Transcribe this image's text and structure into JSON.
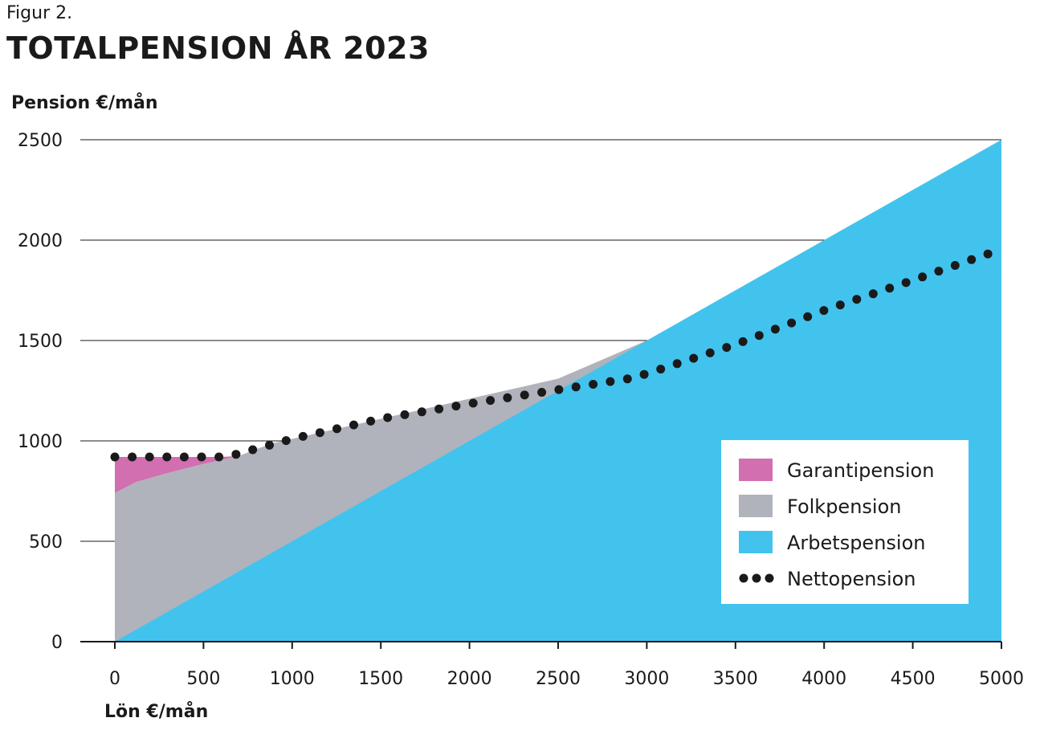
{
  "figure_label": "Figur 2.",
  "chart_data": {
    "type": "area",
    "title": "TOTALPENSION ÅR 2023",
    "ylabel": "Pension €/mån",
    "xlabel": "Lön €/mån",
    "xlim": [
      0,
      5000
    ],
    "ylim": [
      0,
      2500
    ],
    "x_ticks": [
      {
        "value": 0,
        "label": "0"
      },
      {
        "value": 500,
        "label": "500"
      },
      {
        "value": 1000,
        "label": "1000"
      },
      {
        "value": 1500,
        "label": "1500"
      },
      {
        "value": 2000,
        "label": "2000"
      },
      {
        "value": 2500,
        "label": "2500"
      },
      {
        "value": 3000,
        "label": "3000"
      },
      {
        "value": 3500,
        "label": "3500"
      },
      {
        "value": 4000,
        "label": "4000"
      },
      {
        "value": 4500,
        "label": "4500"
      },
      {
        "value": 5000,
        "label": "5000"
      }
    ],
    "y_ticks": [
      {
        "value": 0,
        "label": "0"
      },
      {
        "value": 500,
        "label": "500"
      },
      {
        "value": 1000,
        "label": "1000"
      },
      {
        "value": 1500,
        "label": "1500"
      },
      {
        "value": 2000,
        "label": "2000"
      },
      {
        "value": 2500,
        "label": "2500"
      }
    ],
    "grid": "horizontal",
    "legend_position": "bottom-right",
    "series": [
      {
        "name": "Arbetspension",
        "kind": "area",
        "color": "#42c3ee",
        "points": [
          [
            0,
            0
          ],
          [
            5000,
            2500
          ]
        ]
      },
      {
        "name": "Folkpension",
        "kind": "area",
        "color": "#b0b3bb",
        "points": [
          [
            0,
            740
          ],
          [
            120,
            795
          ],
          [
            300,
            840
          ],
          [
            500,
            885
          ],
          [
            600,
            905
          ],
          [
            700,
            925
          ],
          [
            800,
            960
          ],
          [
            900,
            990
          ],
          [
            1000,
            1010
          ],
          [
            1500,
            1110
          ],
          [
            2000,
            1210
          ],
          [
            2500,
            1310
          ],
          [
            3000,
            1500
          ]
        ]
      },
      {
        "name": "Garantipension",
        "kind": "area",
        "color": "#d16fb0",
        "points": [
          [
            0,
            920
          ],
          [
            600,
            920
          ],
          [
            700,
            925
          ]
        ]
      },
      {
        "name": "Nettopension",
        "kind": "dots",
        "color": "#1a1a1a",
        "points": [
          [
            0,
            920
          ],
          [
            600,
            920
          ],
          [
            650,
            925
          ],
          [
            1000,
            1010
          ],
          [
            1500,
            1110
          ],
          [
            2000,
            1185
          ],
          [
            2500,
            1255
          ],
          [
            2900,
            1310
          ],
          [
            3000,
            1335
          ],
          [
            3500,
            1480
          ],
          [
            4000,
            1650
          ],
          [
            4500,
            1800
          ],
          [
            5000,
            1955
          ]
        ]
      }
    ]
  }
}
